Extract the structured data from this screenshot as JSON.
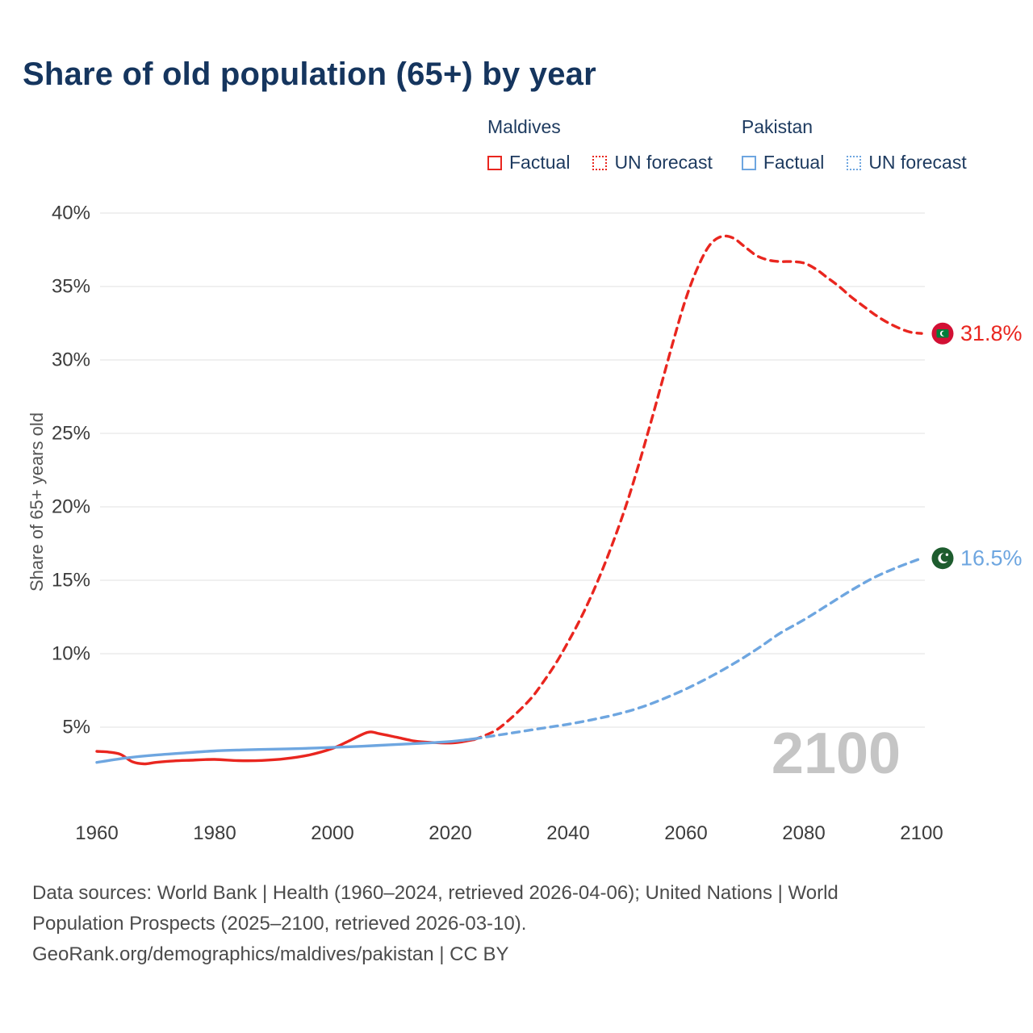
{
  "title": "Share of old population (65+) by year",
  "ylabel": "Share of 65+ years old",
  "watermark": "2100",
  "colors": {
    "maldives": "#e9261f",
    "pakistan": "#6ea6e0",
    "title": "#15355e",
    "legend_text": "#1d3a5f",
    "tick": "#3c3c3c",
    "grid": "#e7e7e7",
    "watermark": "#c5c5c5",
    "footer": "#4b4b4b",
    "maldives_flag_red": "#d21034",
    "maldives_flag_green": "#007e3a",
    "pakistan_flag_green": "#1d5c2e"
  },
  "legend": {
    "maldives": {
      "label": "Maldives",
      "factual": "Factual",
      "forecast": "UN forecast"
    },
    "pakistan": {
      "label": "Pakistan",
      "factual": "Factual",
      "forecast": "UN forecast"
    }
  },
  "markers": {
    "maldives": {
      "value": 31.8,
      "value_label": "31.8%",
      "year": 2100,
      "flag": "maldives-flag-icon"
    },
    "pakistan": {
      "value": 16.5,
      "value_label": "16.5%",
      "year": 2100,
      "flag": "pakistan-flag-icon"
    }
  },
  "chart_data": {
    "type": "line",
    "title": "Share of old population (65+) by year",
    "xlabel": "",
    "ylabel": "Share of 65+ years old",
    "xlim": [
      1960,
      2100
    ],
    "ylim": [
      0,
      42
    ],
    "xticks": [
      1960,
      1980,
      2000,
      2020,
      2040,
      2060,
      2080,
      2100
    ],
    "yticks": [
      5,
      10,
      15,
      20,
      25,
      30,
      35,
      40
    ],
    "grid": "horizontal",
    "legend_position": "top-right",
    "series": [
      {
        "id": "maldives-factual",
        "name": "Maldives Factual",
        "style": "solid",
        "color": "#e9261f",
        "points": [
          [
            1960,
            3.35
          ],
          [
            1962,
            3.3
          ],
          [
            1964,
            3.15
          ],
          [
            1966,
            2.65
          ],
          [
            1968,
            2.5
          ],
          [
            1970,
            2.6
          ],
          [
            1973,
            2.7
          ],
          [
            1976,
            2.75
          ],
          [
            1980,
            2.8
          ],
          [
            1984,
            2.72
          ],
          [
            1988,
            2.73
          ],
          [
            1992,
            2.85
          ],
          [
            1996,
            3.1
          ],
          [
            2000,
            3.55
          ],
          [
            2003,
            4.1
          ],
          [
            2006,
            4.65
          ],
          [
            2008,
            4.55
          ],
          [
            2011,
            4.3
          ],
          [
            2014,
            4.05
          ],
          [
            2017,
            3.95
          ],
          [
            2020,
            3.92
          ],
          [
            2022,
            4.0
          ],
          [
            2024,
            4.15
          ]
        ]
      },
      {
        "id": "maldives-forecast",
        "name": "Maldives UN forecast",
        "style": "dashed",
        "color": "#e9261f",
        "points": [
          [
            2024,
            4.15
          ],
          [
            2026,
            4.45
          ],
          [
            2028,
            4.85
          ],
          [
            2030,
            5.5
          ],
          [
            2032,
            6.25
          ],
          [
            2034,
            7.1
          ],
          [
            2036,
            8.2
          ],
          [
            2038,
            9.4
          ],
          [
            2040,
            10.8
          ],
          [
            2042,
            12.3
          ],
          [
            2044,
            14.0
          ],
          [
            2046,
            15.9
          ],
          [
            2048,
            18.0
          ],
          [
            2050,
            20.3
          ],
          [
            2052,
            22.9
          ],
          [
            2054,
            25.7
          ],
          [
            2056,
            28.6
          ],
          [
            2058,
            31.5
          ],
          [
            2060,
            34.2
          ],
          [
            2062,
            36.3
          ],
          [
            2064,
            37.8
          ],
          [
            2066,
            38.4
          ],
          [
            2068,
            38.3
          ],
          [
            2070,
            37.7
          ],
          [
            2072,
            37.1
          ],
          [
            2074,
            36.8
          ],
          [
            2076,
            36.7
          ],
          [
            2078,
            36.7
          ],
          [
            2080,
            36.6
          ],
          [
            2082,
            36.2
          ],
          [
            2084,
            35.6
          ],
          [
            2086,
            35.0
          ],
          [
            2088,
            34.3
          ],
          [
            2090,
            33.7
          ],
          [
            2092,
            33.1
          ],
          [
            2094,
            32.6
          ],
          [
            2096,
            32.2
          ],
          [
            2098,
            31.9
          ],
          [
            2100,
            31.8
          ]
        ]
      },
      {
        "id": "pakistan-factual",
        "name": "Pakistan Factual",
        "style": "solid",
        "color": "#6ea6e0",
        "points": [
          [
            1960,
            2.6
          ],
          [
            1965,
            2.9
          ],
          [
            1970,
            3.1
          ],
          [
            1975,
            3.25
          ],
          [
            1980,
            3.38
          ],
          [
            1985,
            3.45
          ],
          [
            1990,
            3.5
          ],
          [
            1995,
            3.55
          ],
          [
            2000,
            3.62
          ],
          [
            2005,
            3.7
          ],
          [
            2010,
            3.8
          ],
          [
            2015,
            3.9
          ],
          [
            2020,
            4.02
          ],
          [
            2024,
            4.2
          ]
        ]
      },
      {
        "id": "pakistan-forecast",
        "name": "Pakistan UN forecast",
        "style": "dashed",
        "color": "#6ea6e0",
        "points": [
          [
            2024,
            4.2
          ],
          [
            2028,
            4.45
          ],
          [
            2032,
            4.7
          ],
          [
            2036,
            4.95
          ],
          [
            2040,
            5.2
          ],
          [
            2044,
            5.5
          ],
          [
            2048,
            5.85
          ],
          [
            2052,
            6.3
          ],
          [
            2056,
            6.9
          ],
          [
            2060,
            7.6
          ],
          [
            2064,
            8.4
          ],
          [
            2068,
            9.3
          ],
          [
            2072,
            10.3
          ],
          [
            2076,
            11.4
          ],
          [
            2080,
            12.3
          ],
          [
            2084,
            13.3
          ],
          [
            2088,
            14.3
          ],
          [
            2092,
            15.2
          ],
          [
            2096,
            15.9
          ],
          [
            2100,
            16.5
          ]
        ]
      }
    ]
  },
  "footer": {
    "lines": [
      "Data sources: World Bank | Health (1960–2024, retrieved 2026-04-06); United Nations | World",
      "Population Prospects (2025–2100, retrieved 2026-03-10).",
      "GeoRank.org/demographics/maldives/pakistan | CC BY"
    ]
  }
}
